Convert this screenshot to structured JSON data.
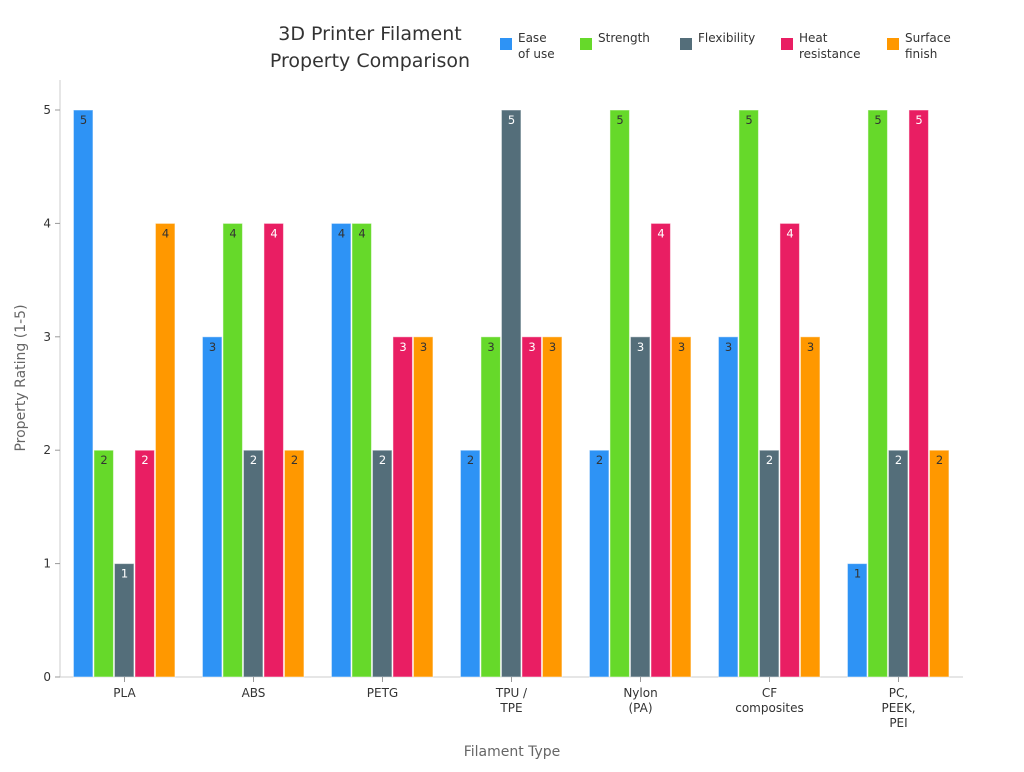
{
  "chart_data": {
    "type": "bar",
    "title": [
      "3D Printer Filament",
      "Property Comparison"
    ],
    "xlabel": "Filament Type",
    "ylabel": "Property Rating (1-5)",
    "ylim": [
      0,
      5
    ],
    "yticks": [
      0,
      1,
      2,
      3,
      4,
      5
    ],
    "grid": false,
    "legend_position": "top-right",
    "categories": [
      [
        "PLA"
      ],
      [
        "ABS"
      ],
      [
        "PETG"
      ],
      [
        "TPU /",
        "TPE"
      ],
      [
        "Nylon",
        "(PA)"
      ],
      [
        "CF",
        "composites"
      ],
      [
        "PC,",
        "PEEK,",
        "PEI"
      ]
    ],
    "series": [
      {
        "name": [
          "Ease",
          "of use"
        ],
        "color": "#2E93F5",
        "label_color": "#333333",
        "values": [
          5,
          3,
          4,
          2,
          2,
          3,
          1
        ]
      },
      {
        "name": [
          "Strength"
        ],
        "color": "#66D92A",
        "label_color": "#333333",
        "values": [
          2,
          4,
          4,
          3,
          5,
          5,
          5
        ]
      },
      {
        "name": [
          "Flexibility"
        ],
        "color": "#546E7A",
        "label_color": "#ffffff",
        "values": [
          1,
          2,
          2,
          5,
          3,
          2,
          2
        ]
      },
      {
        "name": [
          "Heat",
          "resistance"
        ],
        "color": "#E91E63",
        "label_color": "#ffffff",
        "values": [
          2,
          4,
          3,
          3,
          4,
          4,
          5
        ]
      },
      {
        "name": [
          "Surface",
          "finish"
        ],
        "color": "#FF9800",
        "label_color": "#333333",
        "values": [
          4,
          2,
          3,
          3,
          3,
          3,
          2
        ]
      }
    ]
  }
}
